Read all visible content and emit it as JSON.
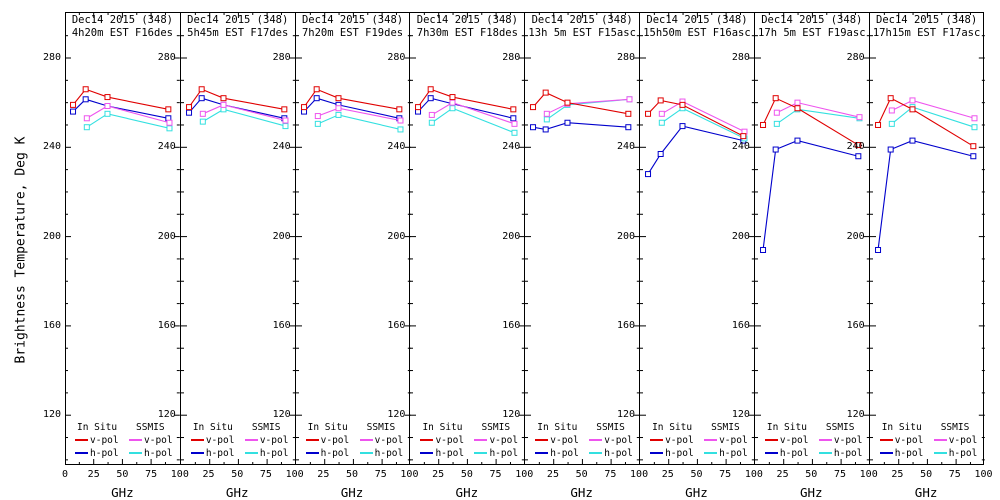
{
  "figure": {
    "y_axis_label": "Brightness Temperature, Deg K",
    "x_axis_label": "GHz",
    "legend": {
      "in_situ_header": "In Situ",
      "ssmis_header": "SSMIS",
      "v_pol": "v-pol",
      "h_pol": "h-pol"
    }
  },
  "colors": {
    "in_situ_v": "#e00000",
    "in_situ_h": "#0000cc",
    "ssmis_v": "#ee55ee",
    "ssmis_h": "#33e0e0",
    "axis": "#000000",
    "background": "#ffffff"
  },
  "chart_data": {
    "type": "line",
    "shared": {
      "xlabel": "GHz",
      "ylabel": "Brightness Temperature, Deg K",
      "xlim": [
        0,
        100
      ],
      "ylim": [
        98,
        301
      ],
      "x_major_ticks": [
        0,
        25,
        50,
        75,
        100
      ],
      "x_minor_ticks": [
        12.5,
        37.5,
        62.5,
        87.5
      ],
      "y_major_ticks": [
        280,
        240,
        200,
        160,
        120
      ],
      "y_minor_step": 10,
      "grid": false,
      "legend_position": "bottom-inside",
      "x_in_situ": [
        7,
        18,
        37,
        90
      ],
      "x_ssmis": [
        19,
        37,
        91
      ]
    },
    "panels": [
      {
        "title": "Dec14 2015 (348)",
        "subtitle": "4h20m EST F16des",
        "in_situ_v": [
          259,
          266,
          262.5,
          257
        ],
        "in_situ_h": [
          256,
          261.5,
          258.5,
          253
        ],
        "ssmis_v": [
          253,
          258.5,
          251
        ],
        "ssmis_h": [
          249,
          255,
          248.5
        ]
      },
      {
        "title": "Dec14 2015 (348)",
        "subtitle": "5h45m EST F17des",
        "in_situ_v": [
          258,
          266,
          262,
          257
        ],
        "in_situ_h": [
          255.5,
          262,
          259,
          253
        ],
        "ssmis_v": [
          255,
          259,
          252
        ],
        "ssmis_h": [
          251.5,
          257,
          249.5
        ]
      },
      {
        "title": "Dec14 2015 (348)",
        "subtitle": "7h20m EST F19des",
        "in_situ_v": [
          258,
          266,
          262,
          257
        ],
        "in_situ_h": [
          256,
          262,
          259,
          253
        ],
        "ssmis_v": [
          254,
          257.5,
          252
        ],
        "ssmis_h": [
          250.5,
          254.5,
          248
        ]
      },
      {
        "title": "Dec14 2015 (348)",
        "subtitle": "7h30m EST F18des",
        "in_situ_v": [
          258,
          266,
          262.5,
          257
        ],
        "in_situ_h": [
          256,
          262,
          259.5,
          253
        ],
        "ssmis_v": [
          254.5,
          260,
          250.5
        ],
        "ssmis_h": [
          251,
          257.5,
          246.5
        ]
      },
      {
        "title": "Dec14 2015 (348)",
        "subtitle": "13h 5m EST F15asc",
        "in_situ_v": [
          258,
          264.5,
          260,
          255
        ],
        "in_situ_h": [
          249,
          248,
          251,
          249
        ],
        "ssmis_v": [
          255,
          259.5,
          261.5
        ],
        "ssmis_h": [
          252.5,
          259,
          261.5
        ]
      },
      {
        "title": "Dec14 2015 (348)",
        "subtitle": "15h50m EST F16asc",
        "in_situ_v": [
          255,
          261,
          259,
          245
        ],
        "in_situ_h": [
          228,
          237,
          249.5,
          243
        ],
        "ssmis_v": [
          255,
          260.5,
          247
        ],
        "ssmis_h": [
          251,
          257.5,
          244
        ]
      },
      {
        "title": "Dec14 2015 (348)",
        "subtitle": "17h 5m EST F19asc",
        "in_situ_v": [
          250,
          262,
          257.5,
          241
        ],
        "in_situ_h": [
          194,
          239,
          243,
          236
        ],
        "ssmis_v": [
          255.5,
          260,
          253.5
        ],
        "ssmis_h": [
          250.5,
          257,
          253
        ]
      },
      {
        "title": "Dec14 2015 (348)",
        "subtitle": "17h15m EST F17asc",
        "in_situ_v": [
          250,
          262,
          257,
          240.5
        ],
        "in_situ_h": [
          194,
          239,
          243,
          236
        ],
        "ssmis_v": [
          256.5,
          261,
          253
        ],
        "ssmis_h": [
          250.5,
          258,
          249
        ]
      }
    ]
  }
}
